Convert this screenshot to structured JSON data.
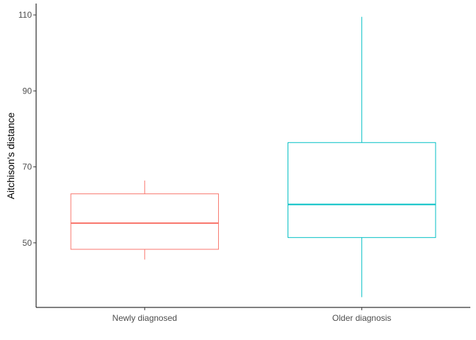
{
  "chart_data": {
    "type": "boxplot",
    "ylabel": "Aitchison's distance",
    "xlabel": "",
    "title": "",
    "ylim": [
      33,
      113
    ],
    "yticks": [
      50,
      70,
      90,
      110
    ],
    "grid": false,
    "legend": "none",
    "categories": [
      "Newly diagnosed",
      "Older diagnosis"
    ],
    "boxes": [
      {
        "category": "Newly diagnosed",
        "color": "#F8766D",
        "lower_whisker": 45.6,
        "q1": 48.3,
        "median": 55.2,
        "q3": 62.9,
        "upper_whisker": 66.4
      },
      {
        "category": "Older diagnosis",
        "color": "#00BFC4",
        "lower_whisker": 35.7,
        "q1": 51.4,
        "median": 60.1,
        "q3": 76.4,
        "upper_whisker": 109.5
      }
    ]
  }
}
